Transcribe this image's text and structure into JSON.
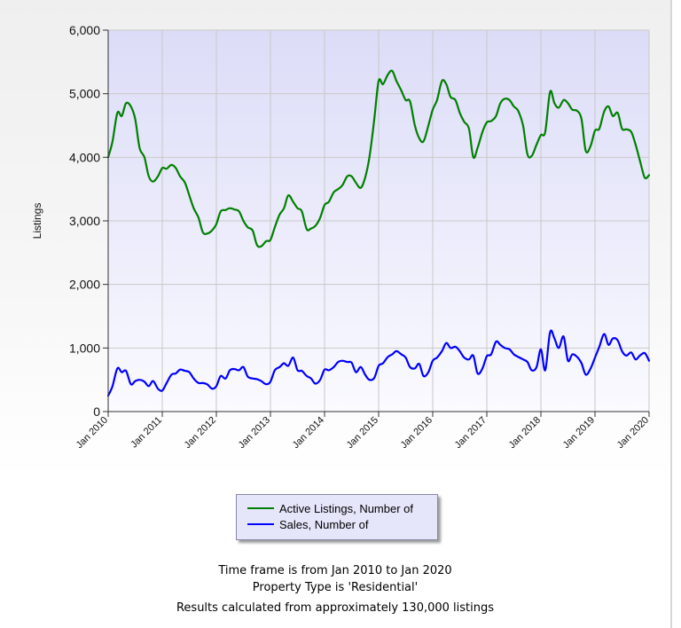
{
  "chart_data": {
    "type": "line",
    "title": "",
    "ylabel": "Listings",
    "xlabel": "",
    "ylim": [
      0,
      6000
    ],
    "xlim": [
      2010.0,
      2020.0
    ],
    "yticks": [
      0,
      1000,
      2000,
      3000,
      4000,
      5000,
      6000
    ],
    "ytick_labels": [
      "0",
      "1,000",
      "2,000",
      "3,000",
      "4,000",
      "5,000",
      "6,000"
    ],
    "xticks": [
      2010,
      2011,
      2012,
      2013,
      2014,
      2015,
      2016,
      2017,
      2018,
      2019,
      2020
    ],
    "xtick_labels": [
      "Jan 2010",
      "Jan 2011",
      "Jan 2012",
      "Jan 2013",
      "Jan 2014",
      "Jan 2015",
      "Jan 2016",
      "Jan 2017",
      "Jan 2018",
      "Jan 2019",
      "Jan 2020"
    ],
    "grid": true,
    "legend_position": "bottom-center",
    "series": [
      {
        "name": "Active Listings, Number of",
        "color": "#008000",
        "points": [
          [
            2010.0,
            4000
          ],
          [
            2010.08,
            4250
          ],
          [
            2010.17,
            4700
          ],
          [
            2010.25,
            4650
          ],
          [
            2010.33,
            4850
          ],
          [
            2010.42,
            4800
          ],
          [
            2010.5,
            4600
          ],
          [
            2010.58,
            4150
          ],
          [
            2010.67,
            4000
          ],
          [
            2010.75,
            3700
          ],
          [
            2010.83,
            3620
          ],
          [
            2010.92,
            3700
          ],
          [
            2011.0,
            3830
          ],
          [
            2011.08,
            3820
          ],
          [
            2011.17,
            3880
          ],
          [
            2011.25,
            3830
          ],
          [
            2011.33,
            3700
          ],
          [
            2011.42,
            3600
          ],
          [
            2011.5,
            3400
          ],
          [
            2011.58,
            3200
          ],
          [
            2011.67,
            3050
          ],
          [
            2011.75,
            2820
          ],
          [
            2011.83,
            2800
          ],
          [
            2011.92,
            2850
          ],
          [
            2012.0,
            2950
          ],
          [
            2012.08,
            3150
          ],
          [
            2012.17,
            3170
          ],
          [
            2012.25,
            3200
          ],
          [
            2012.33,
            3180
          ],
          [
            2012.42,
            3150
          ],
          [
            2012.5,
            3000
          ],
          [
            2012.58,
            2900
          ],
          [
            2012.67,
            2850
          ],
          [
            2012.75,
            2620
          ],
          [
            2012.83,
            2600
          ],
          [
            2012.92,
            2680
          ],
          [
            2013.0,
            2700
          ],
          [
            2013.08,
            2900
          ],
          [
            2013.17,
            3100
          ],
          [
            2013.25,
            3200
          ],
          [
            2013.33,
            3400
          ],
          [
            2013.42,
            3300
          ],
          [
            2013.5,
            3200
          ],
          [
            2013.58,
            3150
          ],
          [
            2013.67,
            2870
          ],
          [
            2013.75,
            2880
          ],
          [
            2013.83,
            2920
          ],
          [
            2013.92,
            3050
          ],
          [
            2014.0,
            3250
          ],
          [
            2014.08,
            3300
          ],
          [
            2014.17,
            3450
          ],
          [
            2014.25,
            3500
          ],
          [
            2014.33,
            3560
          ],
          [
            2014.42,
            3700
          ],
          [
            2014.5,
            3700
          ],
          [
            2014.58,
            3600
          ],
          [
            2014.67,
            3520
          ],
          [
            2014.75,
            3680
          ],
          [
            2014.83,
            4000
          ],
          [
            2014.92,
            4600
          ],
          [
            2015.0,
            5200
          ],
          [
            2015.08,
            5150
          ],
          [
            2015.17,
            5300
          ],
          [
            2015.25,
            5360
          ],
          [
            2015.33,
            5200
          ],
          [
            2015.42,
            5050
          ],
          [
            2015.5,
            4900
          ],
          [
            2015.58,
            4880
          ],
          [
            2015.67,
            4500
          ],
          [
            2015.75,
            4300
          ],
          [
            2015.83,
            4250
          ],
          [
            2015.92,
            4500
          ],
          [
            2016.0,
            4750
          ],
          [
            2016.08,
            4900
          ],
          [
            2016.17,
            5200
          ],
          [
            2016.25,
            5150
          ],
          [
            2016.33,
            4950
          ],
          [
            2016.42,
            4900
          ],
          [
            2016.5,
            4700
          ],
          [
            2016.58,
            4560
          ],
          [
            2016.67,
            4450
          ],
          [
            2016.75,
            4000
          ],
          [
            2016.83,
            4150
          ],
          [
            2016.92,
            4400
          ],
          [
            2017.0,
            4550
          ],
          [
            2017.08,
            4570
          ],
          [
            2017.17,
            4650
          ],
          [
            2017.25,
            4850
          ],
          [
            2017.33,
            4920
          ],
          [
            2017.42,
            4900
          ],
          [
            2017.5,
            4800
          ],
          [
            2017.58,
            4730
          ],
          [
            2017.67,
            4500
          ],
          [
            2017.75,
            4050
          ],
          [
            2017.83,
            4020
          ],
          [
            2017.92,
            4200
          ],
          [
            2018.0,
            4350
          ],
          [
            2018.08,
            4400
          ],
          [
            2018.17,
            5030
          ],
          [
            2018.25,
            4850
          ],
          [
            2018.33,
            4780
          ],
          [
            2018.42,
            4900
          ],
          [
            2018.5,
            4850
          ],
          [
            2018.58,
            4750
          ],
          [
            2018.67,
            4730
          ],
          [
            2018.75,
            4600
          ],
          [
            2018.83,
            4100
          ],
          [
            2018.92,
            4180
          ],
          [
            2019.0,
            4420
          ],
          [
            2019.08,
            4450
          ],
          [
            2019.17,
            4720
          ],
          [
            2019.25,
            4800
          ],
          [
            2019.33,
            4650
          ],
          [
            2019.42,
            4700
          ],
          [
            2019.5,
            4450
          ],
          [
            2019.58,
            4440
          ],
          [
            2019.67,
            4400
          ],
          [
            2019.75,
            4200
          ],
          [
            2019.83,
            3950
          ],
          [
            2019.92,
            3680
          ],
          [
            2020.0,
            3720
          ]
        ]
      },
      {
        "name": "Sales, Number of",
        "color": "#0000ff",
        "points": [
          [
            2010.0,
            250
          ],
          [
            2010.08,
            400
          ],
          [
            2010.17,
            680
          ],
          [
            2010.25,
            620
          ],
          [
            2010.33,
            640
          ],
          [
            2010.42,
            430
          ],
          [
            2010.5,
            480
          ],
          [
            2010.58,
            500
          ],
          [
            2010.67,
            470
          ],
          [
            2010.75,
            400
          ],
          [
            2010.83,
            480
          ],
          [
            2010.92,
            360
          ],
          [
            2011.0,
            330
          ],
          [
            2011.08,
            450
          ],
          [
            2011.17,
            580
          ],
          [
            2011.25,
            600
          ],
          [
            2011.33,
            660
          ],
          [
            2011.42,
            640
          ],
          [
            2011.5,
            620
          ],
          [
            2011.58,
            520
          ],
          [
            2011.67,
            450
          ],
          [
            2011.75,
            450
          ],
          [
            2011.83,
            430
          ],
          [
            2011.92,
            360
          ],
          [
            2012.0,
            400
          ],
          [
            2012.08,
            560
          ],
          [
            2012.17,
            520
          ],
          [
            2012.25,
            650
          ],
          [
            2012.33,
            670
          ],
          [
            2012.42,
            650
          ],
          [
            2012.5,
            700
          ],
          [
            2012.58,
            550
          ],
          [
            2012.67,
            520
          ],
          [
            2012.75,
            510
          ],
          [
            2012.83,
            480
          ],
          [
            2012.92,
            430
          ],
          [
            2013.0,
            470
          ],
          [
            2013.08,
            650
          ],
          [
            2013.17,
            700
          ],
          [
            2013.25,
            760
          ],
          [
            2013.33,
            720
          ],
          [
            2013.42,
            850
          ],
          [
            2013.5,
            650
          ],
          [
            2013.58,
            640
          ],
          [
            2013.67,
            560
          ],
          [
            2013.75,
            520
          ],
          [
            2013.83,
            440
          ],
          [
            2013.92,
            500
          ],
          [
            2014.0,
            660
          ],
          [
            2014.08,
            650
          ],
          [
            2014.17,
            700
          ],
          [
            2014.25,
            780
          ],
          [
            2014.33,
            800
          ],
          [
            2014.42,
            780
          ],
          [
            2014.5,
            770
          ],
          [
            2014.58,
            620
          ],
          [
            2014.67,
            700
          ],
          [
            2014.75,
            580
          ],
          [
            2014.83,
            500
          ],
          [
            2014.92,
            530
          ],
          [
            2015.0,
            720
          ],
          [
            2015.08,
            760
          ],
          [
            2015.17,
            860
          ],
          [
            2015.25,
            900
          ],
          [
            2015.33,
            950
          ],
          [
            2015.42,
            900
          ],
          [
            2015.5,
            850
          ],
          [
            2015.58,
            700
          ],
          [
            2015.67,
            680
          ],
          [
            2015.75,
            750
          ],
          [
            2015.83,
            560
          ],
          [
            2015.92,
            620
          ],
          [
            2016.0,
            800
          ],
          [
            2016.08,
            850
          ],
          [
            2016.17,
            950
          ],
          [
            2016.25,
            1080
          ],
          [
            2016.33,
            1000
          ],
          [
            2016.42,
            1020
          ],
          [
            2016.5,
            950
          ],
          [
            2016.58,
            850
          ],
          [
            2016.67,
            820
          ],
          [
            2016.75,
            880
          ],
          [
            2016.83,
            600
          ],
          [
            2016.92,
            680
          ],
          [
            2017.0,
            870
          ],
          [
            2017.08,
            900
          ],
          [
            2017.17,
            1100
          ],
          [
            2017.25,
            1050
          ],
          [
            2017.33,
            1000
          ],
          [
            2017.42,
            980
          ],
          [
            2017.5,
            900
          ],
          [
            2017.58,
            860
          ],
          [
            2017.67,
            820
          ],
          [
            2017.75,
            780
          ],
          [
            2017.83,
            650
          ],
          [
            2017.92,
            700
          ],
          [
            2018.0,
            980
          ],
          [
            2018.08,
            650
          ],
          [
            2018.17,
            1250
          ],
          [
            2018.25,
            1150
          ],
          [
            2018.33,
            1000
          ],
          [
            2018.42,
            1180
          ],
          [
            2018.5,
            800
          ],
          [
            2018.58,
            900
          ],
          [
            2018.67,
            860
          ],
          [
            2018.75,
            760
          ],
          [
            2018.83,
            580
          ],
          [
            2018.92,
            680
          ],
          [
            2019.0,
            850
          ],
          [
            2019.08,
            1020
          ],
          [
            2019.17,
            1220
          ],
          [
            2019.25,
            1050
          ],
          [
            2019.33,
            1150
          ],
          [
            2019.42,
            1120
          ],
          [
            2019.5,
            950
          ],
          [
            2019.58,
            880
          ],
          [
            2019.67,
            930
          ],
          [
            2019.75,
            820
          ],
          [
            2019.83,
            880
          ],
          [
            2019.92,
            920
          ],
          [
            2020.0,
            800
          ]
        ]
      }
    ]
  },
  "legend": {
    "items": [
      {
        "label": "Active Listings, Number of",
        "color": "#008000"
      },
      {
        "label": "Sales, Number of",
        "color": "#0000ff"
      }
    ]
  },
  "footer": {
    "line1": "Time frame is from Jan 2010 to Jan 2020",
    "line2": "Property Type is 'Residential'",
    "line3": "Results calculated from approximately 130,000 listings"
  }
}
